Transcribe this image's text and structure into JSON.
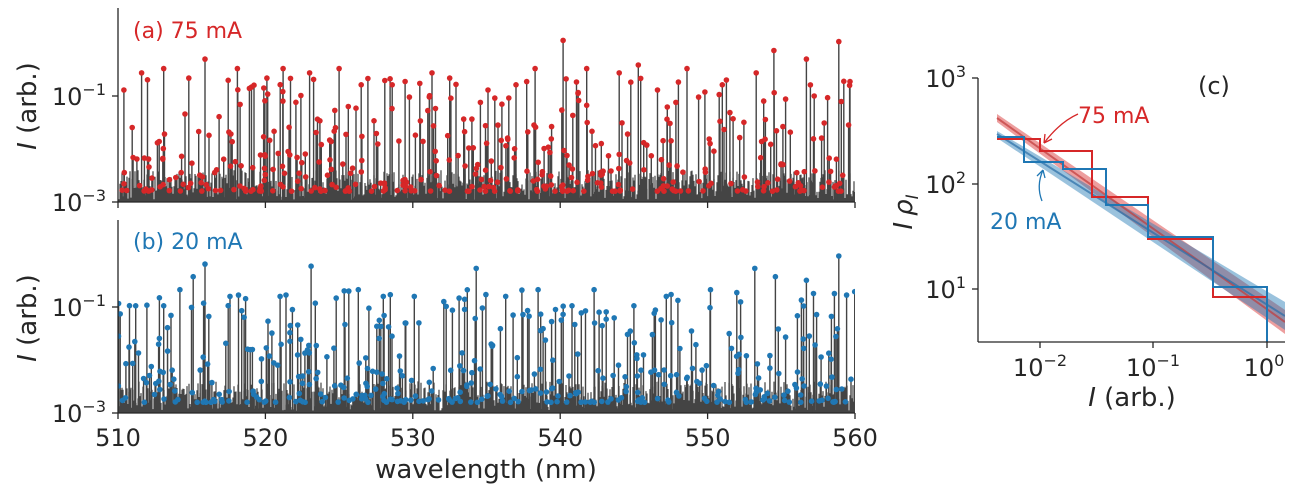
{
  "panels": {
    "a": {
      "label": "(a) 75 mA",
      "color": "#d62728"
    },
    "b": {
      "label": "(b) 20 mA",
      "color": "#1f77b4"
    },
    "c": {
      "label": "(c)"
    }
  },
  "axis_text": {
    "spectrum_ylabel_italic": "I",
    "spectrum_ylabel_rest": " (arb.)",
    "spectrum_xlabel": "wavelength (nm)",
    "c_ylabel_I": "I",
    "c_ylabel_rho": "ρ",
    "c_ylabel_sub": "I",
    "c_xlabel_italic": "I",
    "c_xlabel_rest": " (arb.)",
    "c_annot_75": "75 mA",
    "c_annot_20": "20 mA"
  },
  "chart_data": [
    {
      "type": "line",
      "panel": "a",
      "subtitle": "(a) 75 mA",
      "ylabel": "I (arb.)",
      "xlim": [
        510,
        560
      ],
      "ylim": [
        0.001,
        4
      ],
      "yscale": "log",
      "xticks": [
        510,
        520,
        530,
        540,
        550,
        560
      ],
      "xtick_labels_shown": false,
      "yticks": [
        0.001,
        0.1
      ],
      "ytick_labels": [
        {
          "base": "10",
          "exp": "−3"
        },
        {
          "base": "10",
          "exp": "−1"
        }
      ],
      "series": [
        {
          "role": "spectrum",
          "color": "#444444"
        },
        {
          "role": "peak markers",
          "color": "#d62728"
        }
      ],
      "peaks_sample": [
        [
          510.4,
          0.12
        ],
        [
          511.6,
          0.25
        ],
        [
          513.1,
          0.3
        ],
        [
          514.8,
          0.2
        ],
        [
          515.9,
          0.45
        ],
        [
          518.1,
          0.3
        ],
        [
          520.1,
          0.2
        ],
        [
          521.2,
          0.3
        ],
        [
          523.0,
          0.25
        ],
        [
          525.0,
          0.3
        ],
        [
          526.5,
          0.15
        ],
        [
          528.6,
          0.15
        ],
        [
          531.3,
          0.25
        ],
        [
          532.5,
          0.2
        ],
        [
          535.1,
          0.12
        ],
        [
          537.0,
          0.15
        ],
        [
          538.3,
          0.3
        ],
        [
          540.2,
          1.0
        ],
        [
          541.8,
          0.3
        ],
        [
          544.0,
          0.25
        ],
        [
          545.3,
          0.35
        ],
        [
          546.6,
          0.12
        ],
        [
          548.6,
          0.3
        ],
        [
          551.0,
          0.15
        ],
        [
          553.3,
          0.25
        ],
        [
          554.5,
          0.65
        ],
        [
          556.7,
          0.45
        ],
        [
          558.9,
          0.95
        ]
      ]
    },
    {
      "type": "line",
      "panel": "b",
      "subtitle": "(b) 20 mA",
      "ylabel": "I (arb.)",
      "xlabel": "wavelength (nm)",
      "xlim": [
        510,
        560
      ],
      "ylim": [
        0.001,
        4
      ],
      "yscale": "log",
      "xticks": [
        510,
        520,
        530,
        540,
        550,
        560
      ],
      "yticks": [
        0.001,
        0.1
      ],
      "ytick_labels": [
        {
          "base": "10",
          "exp": "−3"
        },
        {
          "base": "10",
          "exp": "−1"
        }
      ],
      "series": [
        {
          "role": "spectrum",
          "color": "#444444"
        },
        {
          "role": "peak markers",
          "color": "#1f77b4"
        }
      ],
      "peaks_sample": [
        [
          511.2,
          0.1
        ],
        [
          513.1,
          0.1
        ],
        [
          514.2,
          0.2
        ],
        [
          515.1,
          0.35
        ],
        [
          515.9,
          0.6
        ],
        [
          517.6,
          0.15
        ],
        [
          521.0,
          0.15
        ],
        [
          523.1,
          0.55
        ],
        [
          526.3,
          0.2
        ],
        [
          528.0,
          0.15
        ],
        [
          530.1,
          0.15
        ],
        [
          532.1,
          0.12
        ],
        [
          534.3,
          0.5
        ],
        [
          536.3,
          0.15
        ],
        [
          538.5,
          0.2
        ],
        [
          540.8,
          0.1
        ],
        [
          542.3,
          0.2
        ],
        [
          545.0,
          0.1
        ],
        [
          547.2,
          0.15
        ],
        [
          550.2,
          0.2
        ],
        [
          553.2,
          0.5
        ],
        [
          554.6,
          0.35
        ],
        [
          556.7,
          0.3
        ],
        [
          558.9,
          0.85
        ]
      ]
    },
    {
      "type": "line",
      "panel": "c",
      "subtitle": "(c)",
      "xlabel": "I (arb.)",
      "ylabel": "I ρ_I",
      "xscale": "log",
      "yscale": "log",
      "xlim": [
        0.003,
        1.5
      ],
      "ylim": [
        3,
        1000
      ],
      "xticks": [
        0.01,
        0.1,
        1
      ],
      "xtick_labels": [
        {
          "base": "10",
          "exp": "−2"
        },
        {
          "base": "10",
          "exp": "−1"
        },
        {
          "base": "10",
          "exp": "0"
        }
      ],
      "yticks": [
        10,
        100,
        1000
      ],
      "ytick_labels": [
        {
          "base": "10",
          "exp": "1"
        },
        {
          "base": "10",
          "exp": "2"
        },
        {
          "base": "10",
          "exp": "3"
        }
      ],
      "annotations": [
        "75 mA",
        "20 mA"
      ],
      "series": [
        {
          "name": "75 mA",
          "color": "#d62728",
          "histogram_edges": [
            0.0045,
            0.012,
            0.04,
            0.12,
            0.45,
            1.2
          ],
          "histogram_values": [
            250,
            200,
            75,
            30,
            8
          ],
          "fit_line": [
            [
              0.0045,
              400
            ],
            [
              1.5,
              5
            ]
          ]
        },
        {
          "name": "20 mA",
          "color": "#1f77b4",
          "histogram_edges": [
            0.0045,
            0.0075,
            0.02,
            0.04,
            0.12,
            0.45,
            1.2
          ],
          "histogram_values": [
            270,
            160,
            140,
            65,
            30,
            11
          ],
          "fit_line": [
            [
              0.0045,
              260
            ],
            [
              1.5,
              7
            ]
          ]
        }
      ]
    }
  ]
}
